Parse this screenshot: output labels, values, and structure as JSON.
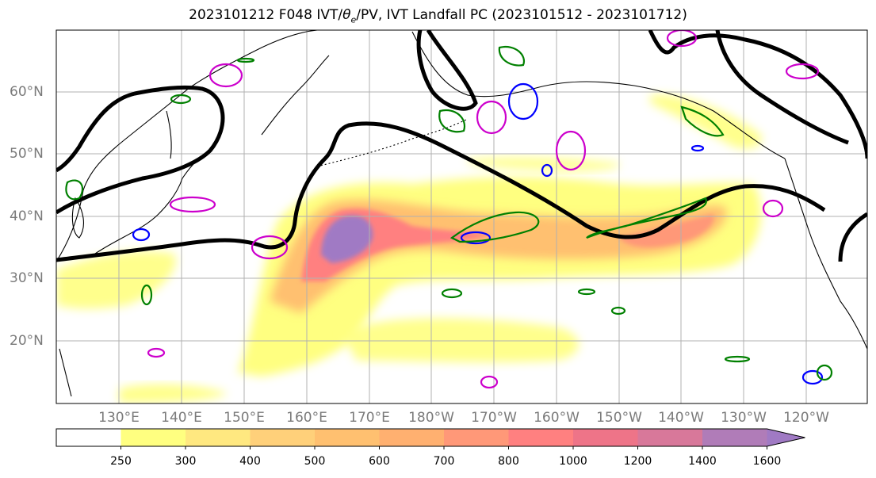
{
  "title": {
    "prefix": "2023101212 F048 IVT/",
    "theta": "θ",
    "subscript": "e",
    "suffix": "/PV, IVT Landfall PC (2023101512 - 2023101712)"
  },
  "map": {
    "lat_labels": [
      "60°N",
      "50°N",
      "40°N",
      "30°N",
      "20°N"
    ],
    "lon_labels": [
      "130°E",
      "140°E",
      "150°E",
      "160°E",
      "170°E",
      "180°W",
      "170°W",
      "160°W",
      "150°W",
      "140°W",
      "130°W",
      "120°W"
    ],
    "gridlines": true,
    "contour_colors": {
      "pv": "#000000",
      "theta_e_warm": "#cc00cc",
      "theta_e_cold": "#0000ff",
      "ivt_anomaly": "#008000"
    }
  },
  "colorbar": {
    "levels": [
      "250",
      "300",
      "400",
      "500",
      "600",
      "700",
      "800",
      "1000",
      "1200",
      "1400",
      "1600"
    ],
    "colors": [
      "#ffffff",
      "#ffff80",
      "#ffe880",
      "#ffd07a",
      "#ffc070",
      "#ffb070",
      "#ff9878",
      "#ff8080",
      "#ee7488",
      "#d8789a",
      "#b07cb8",
      "#a07ac4"
    ]
  }
}
